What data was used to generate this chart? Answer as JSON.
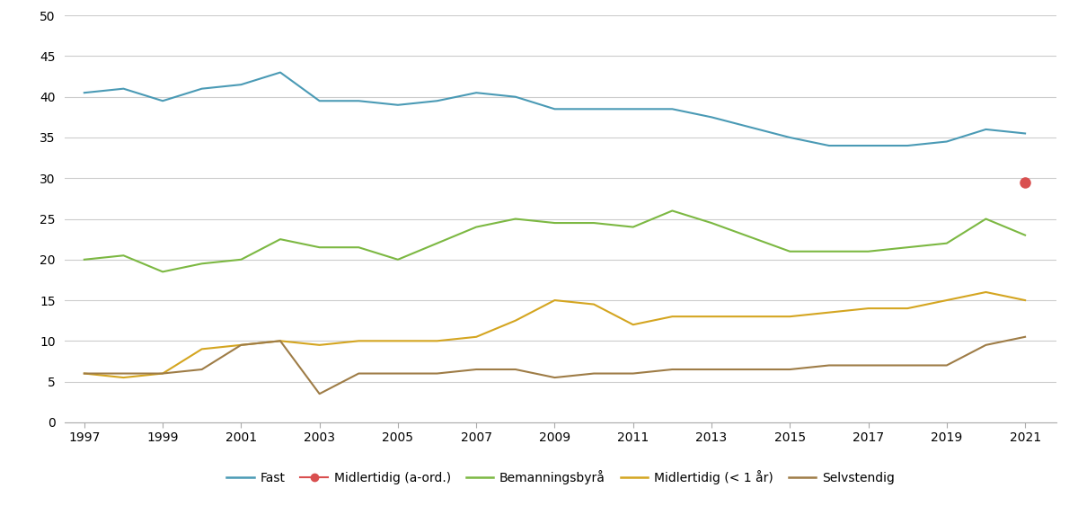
{
  "years": [
    1997,
    1998,
    1999,
    2000,
    2001,
    2002,
    2003,
    2004,
    2005,
    2006,
    2007,
    2008,
    2009,
    2010,
    2011,
    2012,
    2013,
    2015,
    2016,
    2017,
    2018,
    2019,
    2020,
    2021
  ],
  "fast": [
    40.5,
    41.0,
    39.5,
    41.0,
    41.5,
    43.0,
    39.5,
    39.5,
    39.0,
    39.5,
    40.5,
    40.0,
    38.5,
    38.5,
    38.5,
    38.5,
    37.5,
    35.0,
    34.0,
    34.0,
    34.0,
    34.5,
    36.0,
    35.5
  ],
  "midlertidig_aord_year": 2021,
  "midlertidig_aord_val": 29.5,
  "bemanningsbyraa": [
    20.0,
    20.5,
    18.5,
    19.5,
    20.0,
    22.5,
    21.5,
    21.5,
    20.0,
    22.0,
    24.0,
    25.0,
    24.5,
    24.5,
    24.0,
    26.0,
    24.5,
    21.0,
    21.0,
    21.0,
    21.5,
    22.0,
    25.0,
    23.0
  ],
  "midlertidig_lt1": [
    6.0,
    5.5,
    6.0,
    9.0,
    9.5,
    10.0,
    9.5,
    10.0,
    10.0,
    10.0,
    10.5,
    12.5,
    15.0,
    14.5,
    12.0,
    13.0,
    13.0,
    13.0,
    13.5,
    14.0,
    14.0,
    15.0,
    16.0,
    15.0
  ],
  "selvstendig": [
    6.0,
    6.0,
    6.0,
    6.5,
    9.5,
    10.0,
    3.5,
    6.0,
    6.0,
    6.0,
    6.5,
    6.5,
    5.5,
    6.0,
    6.0,
    6.5,
    6.5,
    6.5,
    7.0,
    7.0,
    7.0,
    7.0,
    9.5,
    10.5
  ],
  "colors": {
    "fast": "#4a9ab5",
    "midlertidig_aord": "#d94f4f",
    "bemanningsbyraa": "#7cb842",
    "midlertidig_lt1": "#d4a520",
    "selvstendig": "#9e7c46"
  },
  "ylim": [
    0,
    50
  ],
  "yticks": [
    0,
    5,
    10,
    15,
    20,
    25,
    30,
    35,
    40,
    45,
    50
  ],
  "xticks": [
    1997,
    1999,
    2001,
    2003,
    2005,
    2007,
    2009,
    2011,
    2013,
    2015,
    2017,
    2019,
    2021
  ],
  "xlim_left": 1996.5,
  "xlim_right": 2021.8,
  "legend_labels": [
    "Fast",
    "Midlertidig (a-ord.)",
    "Bemanningsbyrå",
    "Midlertidig (< 1 år)",
    "Selvstendig"
  ],
  "background_color": "#ffffff",
  "grid_color": "#cccccc",
  "linewidth": 1.5,
  "figwidth": 12.0,
  "figheight": 5.73,
  "dpi": 100
}
